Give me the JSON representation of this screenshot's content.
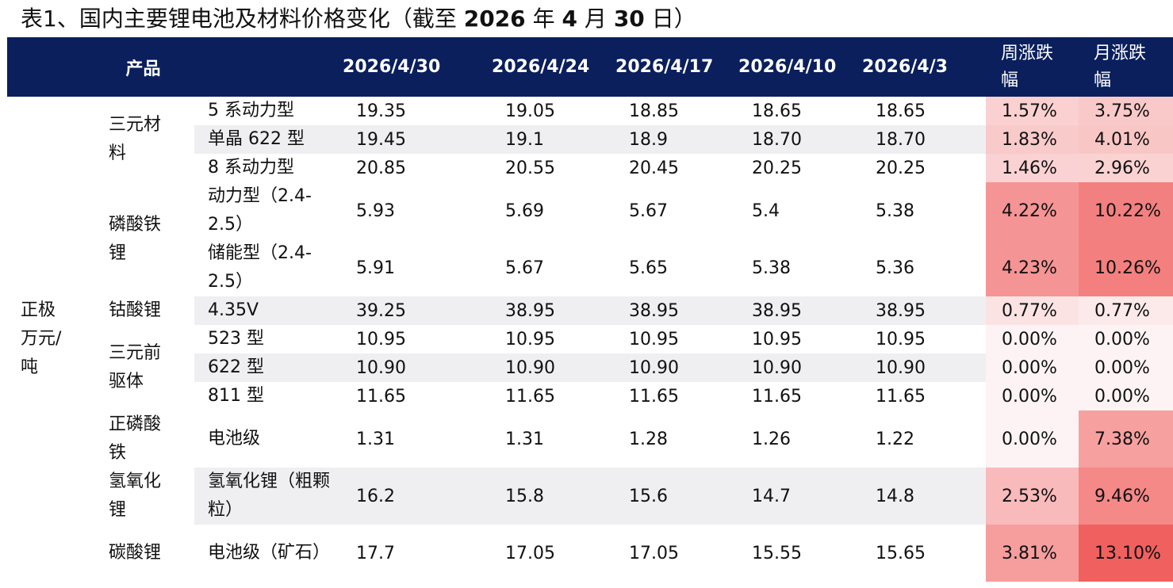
{
  "title": {
    "prefix": "表1、国内主要锂电池及材料价格变化（截至",
    "year": "2026",
    "nian": "年",
    "month": "4",
    "yue": "月",
    "day": "30",
    "ri": "日）"
  },
  "header": {
    "product": "产品",
    "dates": [
      "2026/4/30",
      "2026/4/24",
      "2026/4/17",
      "2026/4/10",
      "2026/4/3"
    ],
    "week_change": "周涨跌幅",
    "month_change": "月涨跌幅"
  },
  "category": "正极\n万元/吨",
  "groups": [
    {
      "name": "三元材料",
      "rows": [
        {
          "product": "5 系动力型",
          "values": [
            "19.35",
            "19.05",
            "18.85",
            "18.65",
            "18.65"
          ],
          "week": "1.57%",
          "month": "3.75%",
          "week_level": 1.57,
          "month_level": 3.75
        },
        {
          "product": "单晶 622 型",
          "values": [
            "19.45",
            "19.1",
            "18.9",
            "18.70",
            "18.70"
          ],
          "week": "1.83%",
          "month": "4.01%",
          "week_level": 1.83,
          "month_level": 4.01
        },
        {
          "product": "8 系动力型",
          "values": [
            "20.85",
            "20.55",
            "20.45",
            "20.25",
            "20.25"
          ],
          "week": "1.46%",
          "month": "2.96%",
          "week_level": 1.46,
          "month_level": 2.96
        }
      ]
    },
    {
      "name": "磷酸铁锂",
      "rows": [
        {
          "product": "动力型（2.4-2.5）",
          "values": [
            "5.93",
            "5.69",
            "5.67",
            "5.4",
            "5.38"
          ],
          "week": "4.22%",
          "month": "10.22%",
          "week_level": 4.22,
          "month_level": 10.22
        },
        {
          "product": "储能型（2.4-2.5）",
          "values": [
            "5.91",
            "5.67",
            "5.65",
            "5.38",
            "5.36"
          ],
          "week": "4.23%",
          "month": "10.26%",
          "week_level": 4.23,
          "month_level": 10.26
        }
      ]
    },
    {
      "name": "钴酸锂",
      "rows": [
        {
          "product": "4.35V",
          "values": [
            "39.25",
            "38.95",
            "38.95",
            "38.95",
            "38.95"
          ],
          "week": "0.77%",
          "month": "0.77%",
          "week_level": 0.77,
          "month_level": 0.77
        }
      ]
    },
    {
      "name": "三元前驱体",
      "rows": [
        {
          "product": "523 型",
          "values": [
            "10.95",
            "10.95",
            "10.95",
            "10.95",
            "10.95"
          ],
          "week": "0.00%",
          "month": "0.00%",
          "week_level": 0,
          "month_level": 0
        },
        {
          "product": "622 型",
          "values": [
            "10.90",
            "10.90",
            "10.90",
            "10.90",
            "10.90"
          ],
          "week": "0.00%",
          "month": "0.00%",
          "week_level": 0,
          "month_level": 0
        },
        {
          "product": "811 型",
          "values": [
            "11.65",
            "11.65",
            "11.65",
            "11.65",
            "11.65"
          ],
          "week": "0.00%",
          "month": "0.00%",
          "week_level": 0,
          "month_level": 0
        }
      ]
    },
    {
      "name": "正磷酸铁",
      "rows": [
        {
          "product": "电池级",
          "values": [
            "1.31",
            "1.31",
            "1.28",
            "1.26",
            "1.22"
          ],
          "week": "0.00%",
          "month": "7.38%",
          "week_level": 0,
          "month_level": 7.38
        }
      ]
    },
    {
      "name": "氢氧化锂",
      "rows": [
        {
          "product": "氢氧化锂（粗颗粒）",
          "values": [
            "16.2",
            "15.8",
            "15.6",
            "14.7",
            "14.8"
          ],
          "week": "2.53%",
          "month": "9.46%",
          "week_level": 2.53,
          "month_level": 9.46
        }
      ]
    },
    {
      "name": "碳酸锂",
      "rows": [
        {
          "product": "电池级（矿石）",
          "values": [
            "17.7",
            "17.05",
            "17.05",
            "15.55",
            "15.65"
          ],
          "week": "3.81%",
          "month": "13.10%",
          "week_level": 3.81,
          "month_level": 13.1
        }
      ]
    }
  ],
  "colors": {
    "header_bg": "#0a1f5c",
    "heat_low": "#fdf3f4",
    "heat_high": "#f0605f",
    "row_shade": "#efeff2"
  }
}
